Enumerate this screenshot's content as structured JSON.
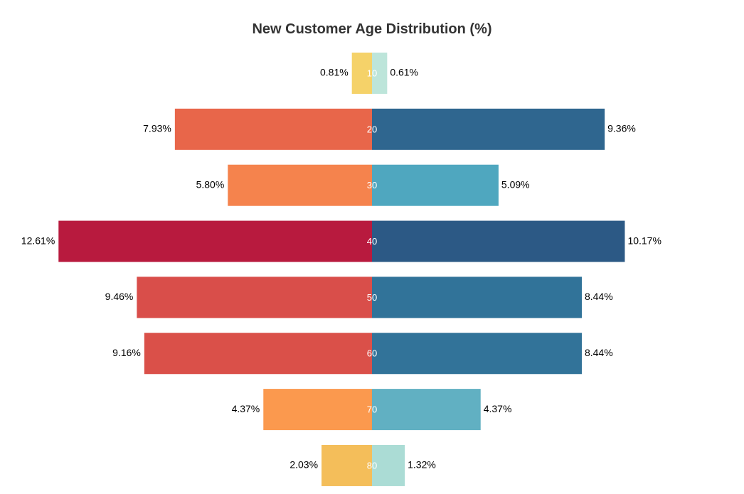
{
  "chart_data": {
    "type": "bar",
    "orientation": "horizontal-diverging",
    "title": "New Customer Age Distribution (%)",
    "categories": [
      "10",
      "20",
      "30",
      "40",
      "50",
      "60",
      "70",
      "80"
    ],
    "series": [
      {
        "side": "left",
        "values": [
          0.81,
          7.93,
          5.8,
          12.61,
          9.46,
          9.16,
          4.37,
          2.03
        ],
        "labels": [
          "0.81%",
          "7.93%",
          "5.80%",
          "12.61%",
          "9.46%",
          "9.16%",
          "4.37%",
          "2.03%"
        ],
        "colors": [
          "#f5d269",
          "#e8664a",
          "#f5834d",
          "#b81a3e",
          "#d94e4a",
          "#da5049",
          "#fb994e",
          "#f4be5a"
        ]
      },
      {
        "side": "right",
        "values": [
          0.61,
          9.36,
          5.09,
          10.17,
          8.44,
          8.44,
          4.37,
          1.32
        ],
        "labels": [
          "0.61%",
          "9.36%",
          "5.09%",
          "10.17%",
          "8.44%",
          "8.44%",
          "4.37%",
          "1.32%"
        ],
        "colors": [
          "#bde5da",
          "#2f668f",
          "#4fa7bf",
          "#2c5985",
          "#317399",
          "#327399",
          "#61b0c2",
          "#abdcd5"
        ]
      }
    ],
    "category_label_color": "#ffffff",
    "value_label_color": "#000000",
    "title_color": "#333333",
    "grid": false,
    "legend": "none"
  }
}
